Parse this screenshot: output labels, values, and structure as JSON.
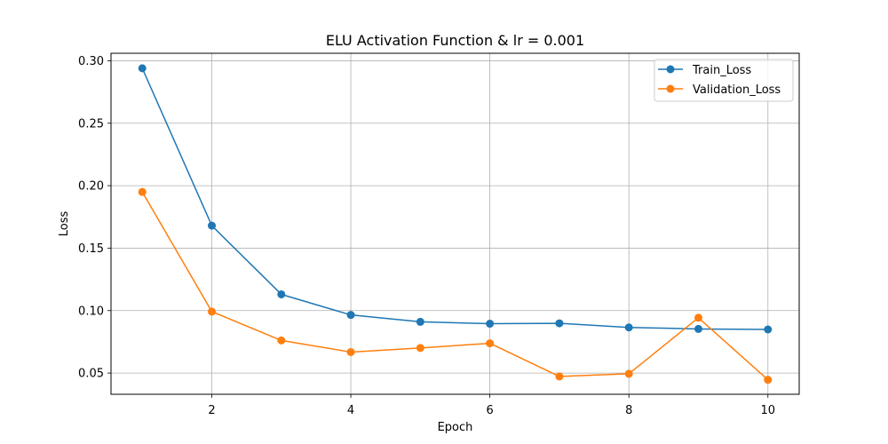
{
  "chart_data": {
    "type": "line",
    "title": "ELU Activation Function & lr = 0.001",
    "xlabel": "Epoch",
    "ylabel": "Loss",
    "xlim": [
      0.55,
      10.45
    ],
    "ylim": [
      0.033,
      0.306
    ],
    "xticks": [
      2,
      4,
      6,
      8,
      10
    ],
    "xtick_labels": [
      "2",
      "4",
      "6",
      "8",
      "10"
    ],
    "yticks": [
      0.05,
      0.1,
      0.15,
      0.2,
      0.25,
      0.3
    ],
    "ytick_labels": [
      "0.05",
      "0.10",
      "0.15",
      "0.20",
      "0.25",
      "0.30"
    ],
    "grid": true,
    "legend_position": "top-right",
    "x": [
      1,
      2,
      3,
      4,
      5,
      6,
      7,
      8,
      9,
      10
    ],
    "series": [
      {
        "name": "Train_Loss",
        "color": "#1f77b4",
        "values": [
          0.294,
          0.168,
          0.113,
          0.0965,
          0.091,
          0.0895,
          0.0898,
          0.0865,
          0.0853,
          0.0849
        ]
      },
      {
        "name": "Validation_Loss",
        "color": "#ff7f0e",
        "values": [
          0.195,
          0.0992,
          0.0761,
          0.0668,
          0.0701,
          0.0738,
          0.0473,
          0.0494,
          0.0943,
          0.0446
        ]
      }
    ]
  }
}
